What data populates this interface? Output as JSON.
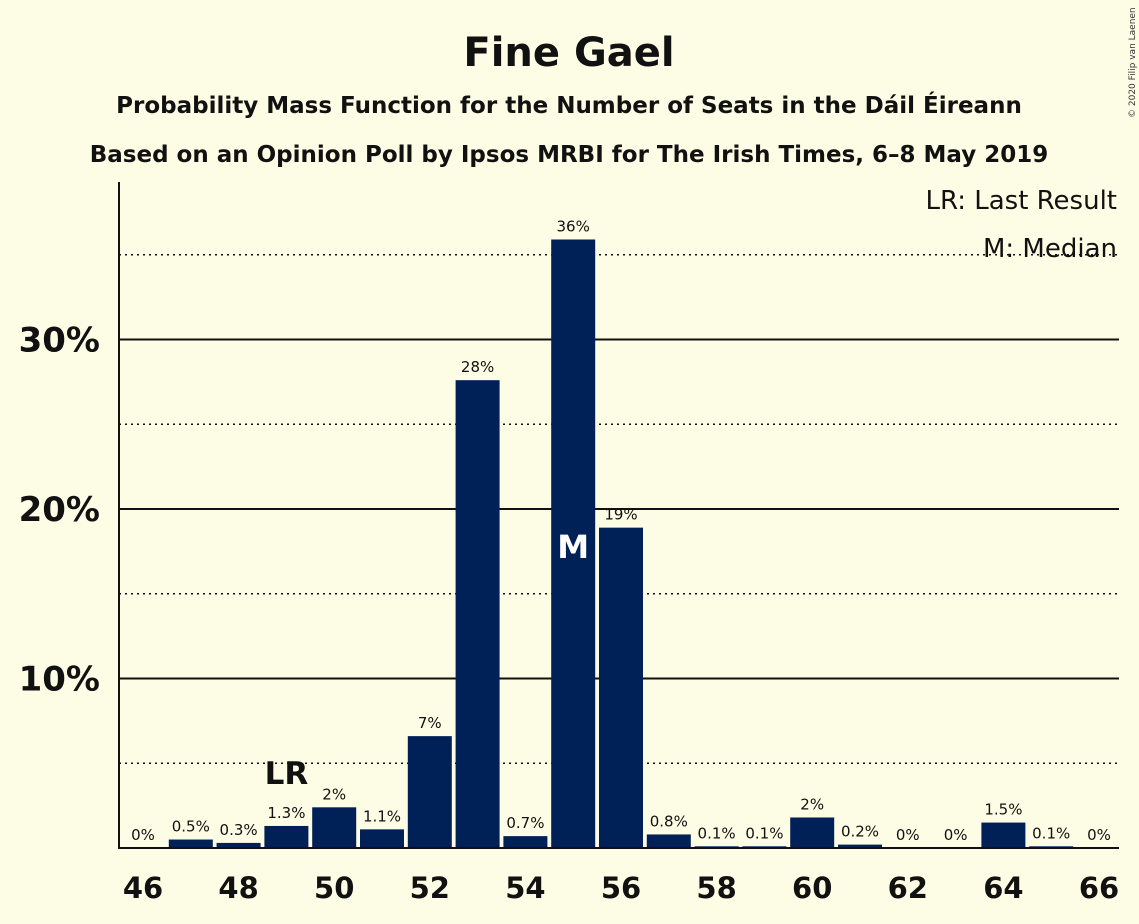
{
  "chart_data": {
    "type": "bar",
    "title": "Fine Gael",
    "subtitle_1": "Probability Mass Function for the Number of Seats in the Dáil Éireann",
    "subtitle_2": "Based on an Opinion Poll by Ipsos MRBI for The Irish Times, 6–8 May 2019",
    "copyright": "© 2020 Filip van Laenen",
    "legend": {
      "lr": "LR: Last Result",
      "m": "M: Median",
      "placement": "top-right"
    },
    "x": [
      46,
      47,
      48,
      49,
      50,
      51,
      52,
      53,
      54,
      55,
      56,
      57,
      58,
      59,
      60,
      61,
      62,
      63,
      64,
      65,
      66
    ],
    "values": [
      0,
      0.5,
      0.3,
      1.3,
      2.4,
      1.1,
      6.6,
      27.6,
      0.7,
      35.9,
      18.9,
      0.8,
      0.1,
      0.1,
      1.8,
      0.2,
      0,
      0,
      1.5,
      0.1,
      0
    ],
    "labels": [
      "0%",
      "0.5%",
      "0.3%",
      "1.3%",
      "2%",
      "1.1%",
      "7%",
      "28%",
      "0.7%",
      "36%",
      "19%",
      "0.8%",
      "0.1%",
      "0.1%",
      "2%",
      "0.2%",
      "0%",
      "0%",
      "1.5%",
      "0.1%",
      "0%"
    ],
    "xticks": [
      "46",
      "48",
      "50",
      "52",
      "54",
      "56",
      "58",
      "60",
      "62",
      "64",
      "66"
    ],
    "yticks": [
      {
        "value": 10,
        "label": "10%"
      },
      {
        "value": 20,
        "label": "20%"
      },
      {
        "value": 30,
        "label": "30%"
      }
    ],
    "ygrid_dotted": [
      5,
      15,
      25,
      35
    ],
    "ylim": [
      0,
      39
    ],
    "last_result": {
      "x": 49,
      "label": "LR"
    },
    "median": {
      "x": 55,
      "label": "M"
    },
    "colors": {
      "bar": "#002157",
      "background": "#fdfce4",
      "text": "#111111"
    }
  }
}
